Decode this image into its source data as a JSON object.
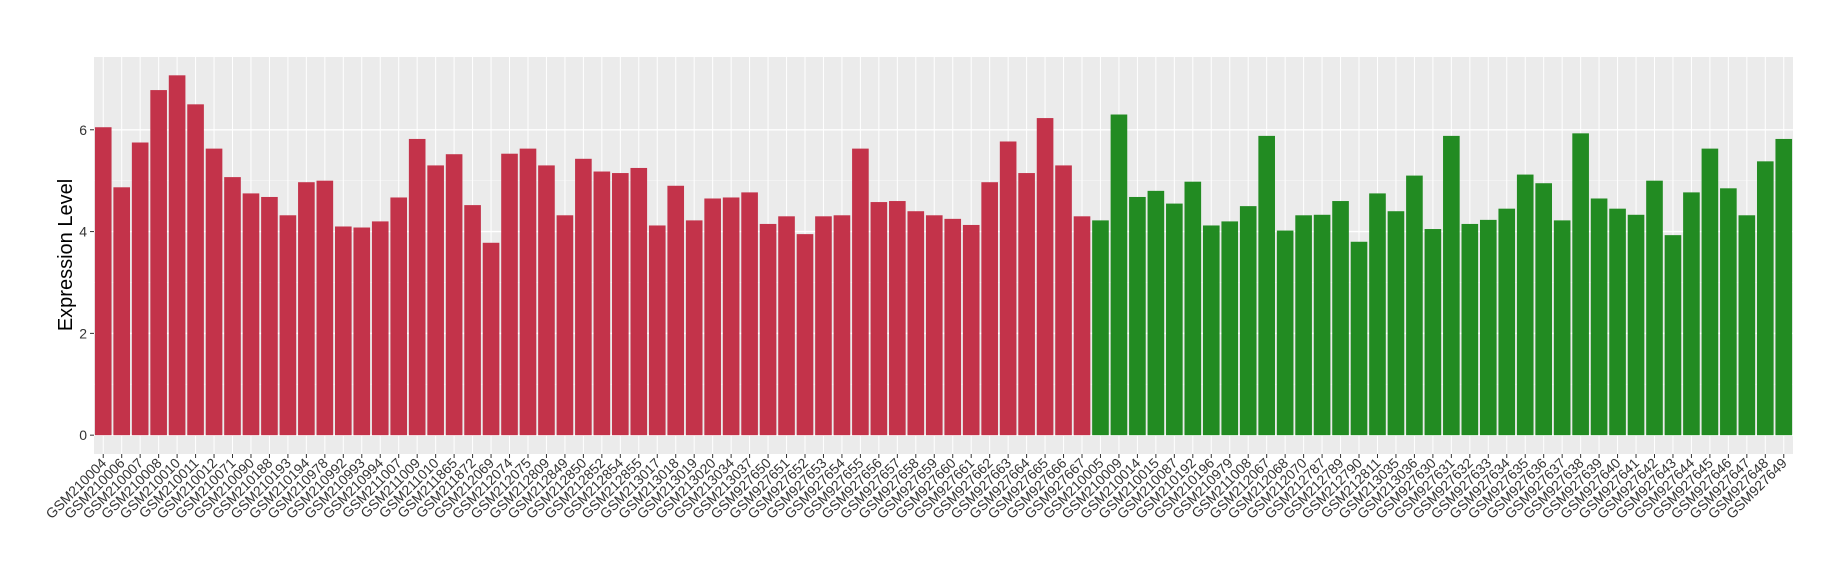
{
  "chart_data": {
    "type": "bar",
    "y_label": "Expression Level",
    "categories": [
      "GSM210004",
      "GSM210006",
      "GSM210007",
      "GSM210008",
      "GSM210010",
      "GSM210011",
      "GSM210012",
      "GSM210071",
      "GSM210090",
      "GSM210188",
      "GSM210193",
      "GSM210194",
      "GSM210978",
      "GSM210992",
      "GSM210993",
      "GSM210994",
      "GSM211007",
      "GSM211009",
      "GSM211010",
      "GSM211865",
      "GSM211872",
      "GSM212069",
      "GSM212074",
      "GSM212075",
      "GSM212809",
      "GSM212849",
      "GSM212850",
      "GSM212852",
      "GSM212854",
      "GSM212855",
      "GSM213017",
      "GSM213018",
      "GSM213019",
      "GSM213020",
      "GSM213034",
      "GSM213037",
      "GSM927650",
      "GSM927651",
      "GSM927652",
      "GSM927653",
      "GSM927654",
      "GSM927655",
      "GSM927656",
      "GSM927657",
      "GSM927658",
      "GSM927659",
      "GSM927660",
      "GSM927661",
      "GSM927662",
      "GSM927663",
      "GSM927664",
      "GSM927665",
      "GSM927666",
      "GSM927667",
      "GSM210005",
      "GSM210009",
      "GSM210014",
      "GSM210015",
      "GSM210087",
      "GSM210192",
      "GSM210196",
      "GSM210979",
      "GSM211008",
      "GSM212067",
      "GSM212068",
      "GSM212070",
      "GSM212787",
      "GSM212789",
      "GSM212790",
      "GSM212811",
      "GSM213035",
      "GSM213036",
      "GSM927630",
      "GSM927631",
      "GSM927632",
      "GSM927633",
      "GSM927634",
      "GSM927635",
      "GSM927636",
      "GSM927637",
      "GSM927638",
      "GSM927639",
      "GSM927640",
      "GSM927641",
      "GSM927642",
      "GSM927643",
      "GSM927644",
      "GSM927645",
      "GSM927646",
      "GSM927647",
      "GSM927648",
      "GSM927649"
    ],
    "values": [
      6.05,
      4.87,
      5.75,
      6.78,
      7.07,
      6.5,
      5.63,
      5.07,
      4.75,
      4.68,
      4.32,
      4.97,
      5.0,
      4.1,
      4.08,
      4.2,
      4.67,
      5.82,
      5.3,
      5.52,
      4.52,
      3.78,
      5.53,
      5.63,
      5.3,
      4.32,
      5.43,
      5.18,
      5.15,
      5.25,
      4.12,
      4.9,
      4.22,
      4.65,
      4.67,
      4.77,
      4.15,
      4.3,
      3.95,
      4.3,
      4.32,
      5.63,
      4.58,
      4.6,
      4.4,
      4.32,
      4.25,
      4.13,
      4.97,
      5.77,
      5.15,
      6.23,
      5.3,
      4.3,
      4.22,
      6.3,
      4.68,
      4.8,
      4.55,
      4.98,
      4.12,
      4.2,
      4.5,
      5.88,
      4.02,
      4.32,
      4.33,
      4.6,
      3.8,
      4.75,
      4.4,
      5.1,
      4.05,
      5.88,
      4.15,
      4.23,
      4.45,
      5.12,
      4.95,
      4.22,
      5.93,
      4.65,
      4.45,
      4.33,
      5.0,
      3.93,
      4.77,
      5.63,
      4.85,
      4.32,
      5.38,
      5.82
    ],
    "colors": [
      "#c3334a",
      "#c3334a",
      "#c3334a",
      "#c3334a",
      "#c3334a",
      "#c3334a",
      "#c3334a",
      "#c3334a",
      "#c3334a",
      "#c3334a",
      "#c3334a",
      "#c3334a",
      "#c3334a",
      "#c3334a",
      "#c3334a",
      "#c3334a",
      "#c3334a",
      "#c3334a",
      "#c3334a",
      "#c3334a",
      "#c3334a",
      "#c3334a",
      "#c3334a",
      "#c3334a",
      "#c3334a",
      "#c3334a",
      "#c3334a",
      "#c3334a",
      "#c3334a",
      "#c3334a",
      "#c3334a",
      "#c3334a",
      "#c3334a",
      "#c3334a",
      "#c3334a",
      "#c3334a",
      "#c3334a",
      "#c3334a",
      "#c3334a",
      "#c3334a",
      "#c3334a",
      "#c3334a",
      "#c3334a",
      "#c3334a",
      "#c3334a",
      "#c3334a",
      "#c3334a",
      "#c3334a",
      "#c3334a",
      "#c3334a",
      "#c3334a",
      "#c3334a",
      "#c3334a",
      "#c3334a",
      "#228b22",
      "#228b22",
      "#228b22",
      "#228b22",
      "#228b22",
      "#228b22",
      "#228b22",
      "#228b22",
      "#228b22",
      "#228b22",
      "#228b22",
      "#228b22",
      "#228b22",
      "#228b22",
      "#228b22",
      "#228b22",
      "#228b22",
      "#228b22",
      "#228b22",
      "#228b22",
      "#228b22",
      "#228b22",
      "#228b22",
      "#228b22",
      "#228b22",
      "#228b22",
      "#228b22",
      "#228b22",
      "#228b22",
      "#228b22",
      "#228b22",
      "#228b22",
      "#228b22",
      "#228b22",
      "#228b22",
      "#228b22",
      "#228b22",
      "#228b22"
    ],
    "ylim": [
      -0.37,
      7.43
    ],
    "yticks": [
      0,
      2,
      4,
      6
    ],
    "grid": true
  }
}
